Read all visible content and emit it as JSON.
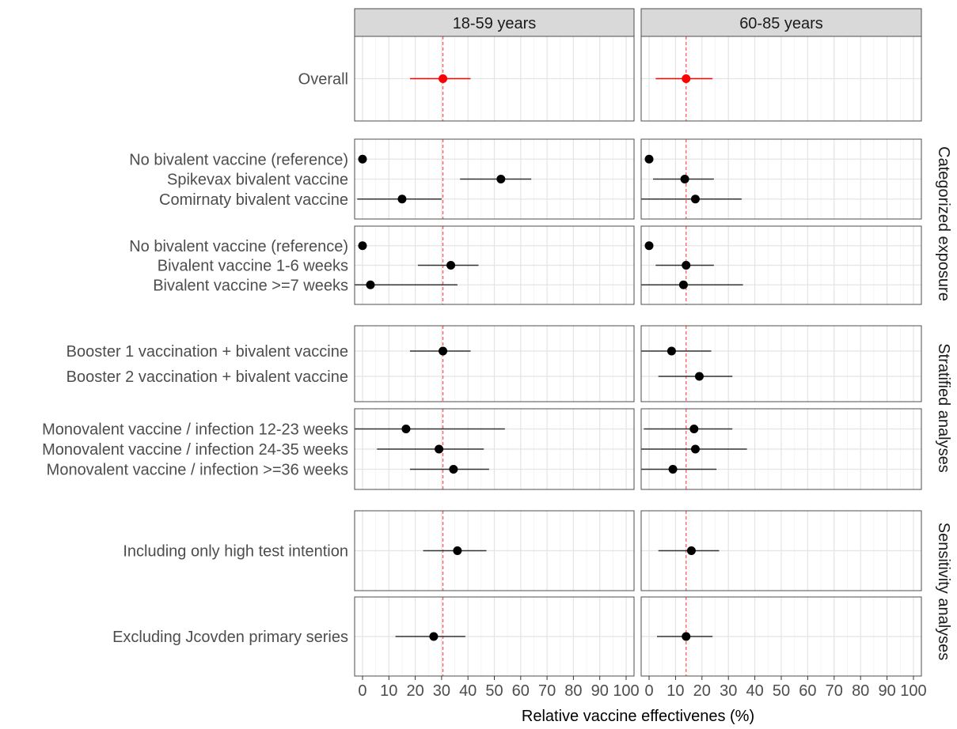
{
  "chart_data": {
    "type": "forest",
    "xlabel": "Relative vaccine effectivenes (%)",
    "xlim": [
      -3,
      103
    ],
    "x_ticks": [
      0,
      10,
      20,
      30,
      40,
      50,
      60,
      70,
      80,
      90,
      100
    ],
    "reference_line": {
      "x": 30.5,
      "col": 0,
      "color": "#ff5a5a"
    },
    "reference_line_2": {
      "x": 14,
      "col": 1,
      "color": "#ff5a5a"
    },
    "grid": true,
    "columns": [
      "18-59 years",
      "60-85 years"
    ],
    "row_groups": [
      "Categorized exposure",
      "Stratified analyses",
      "Sensitivity analyses"
    ],
    "panels": [
      {
        "rows": [
          {
            "label": "Overall",
            "color": "#ff0000",
            "est": [
              30.5,
              14
            ],
            "lo": [
              18,
              2.5
            ],
            "hi": [
              41,
              24
            ]
          }
        ]
      },
      {
        "rows": [
          {
            "label": "No bivalent vaccine (reference)",
            "color": "#000000",
            "est": [
              0,
              0
            ],
            "lo": [
              null,
              null
            ],
            "hi": [
              null,
              null
            ]
          },
          {
            "label": "Spikevax bivalent vaccine",
            "color": "#000000",
            "est": [
              52.5,
              13.5
            ],
            "lo": [
              37,
              1.5
            ],
            "hi": [
              64,
              24.5
            ]
          },
          {
            "label": "Comirnaty bivalent vaccine",
            "color": "#000000",
            "est": [
              15,
              17.5
            ],
            "lo": [
              -2,
              -5
            ],
            "hi": [
              30,
              35
            ]
          }
        ]
      },
      {
        "rows": [
          {
            "label": "No bivalent vaccine (reference)",
            "color": "#000000",
            "est": [
              0,
              0
            ],
            "lo": [
              null,
              null
            ],
            "hi": [
              null,
              null
            ]
          },
          {
            "label": "Bivalent vaccine 1-6 weeks",
            "color": "#000000",
            "est": [
              33.5,
              14
            ],
            "lo": [
              21,
              2.5
            ],
            "hi": [
              44,
              24.5
            ]
          },
          {
            "label": "Bivalent vaccine >=7 weeks",
            "color": "#000000",
            "est": [
              3,
              13
            ],
            "lo": [
              -5,
              -5
            ],
            "hi": [
              36,
              35.5
            ]
          }
        ]
      },
      {
        "rows": [
          {
            "label": "Booster 1 vaccination + bivalent vaccine",
            "color": "#000000",
            "est": [
              30.5,
              8.5
            ],
            "lo": [
              18,
              -5
            ],
            "hi": [
              41,
              23.5
            ]
          },
          {
            "label": "Booster 2 vaccination + bivalent vaccine",
            "color": "#000000",
            "est": [
              null,
              19
            ],
            "lo": [
              null,
              3.5
            ],
            "hi": [
              null,
              31.5
            ]
          }
        ]
      },
      {
        "rows": [
          {
            "label": "Monovalent vaccine / infection 12-23 weeks",
            "color": "#000000",
            "est": [
              16.5,
              17
            ],
            "lo": [
              -5,
              -2
            ],
            "hi": [
              54,
              31.5
            ]
          },
          {
            "label": "Monovalent vaccine / infection 24-35 weeks",
            "color": "#000000",
            "est": [
              29,
              17.5
            ],
            "lo": [
              5.5,
              -5
            ],
            "hi": [
              46,
              37
            ]
          },
          {
            "label": "Monovalent vaccine / infection >=36 weeks",
            "color": "#000000",
            "est": [
              34.5,
              9
            ],
            "lo": [
              18,
              -5
            ],
            "hi": [
              48,
              25.5
            ]
          }
        ]
      },
      {
        "rows": [
          {
            "label": "Including only high test intention",
            "color": "#000000",
            "est": [
              36,
              16
            ],
            "lo": [
              23,
              3.5
            ],
            "hi": [
              47,
              26.5
            ]
          }
        ]
      },
      {
        "rows": [
          {
            "label": "Excluding Jcovden primary series",
            "color": "#000000",
            "est": [
              27,
              14
            ],
            "lo": [
              12.5,
              3
            ],
            "hi": [
              39,
              24
            ]
          }
        ]
      }
    ]
  }
}
